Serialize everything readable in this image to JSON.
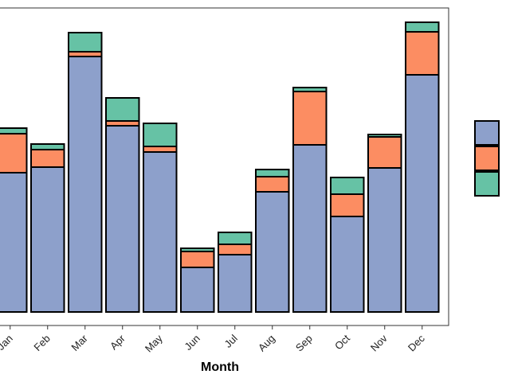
{
  "chart_data": {
    "type": "bar",
    "stacked": true,
    "xlabel": "Month",
    "ylabel": "",
    "categories": [
      "Jan",
      "Feb",
      "Mar",
      "Apr",
      "May",
      "Jun",
      "Jul",
      "Aug",
      "Sep",
      "Oct",
      "Nov",
      "Dec"
    ],
    "ylim": [
      0,
      364
    ],
    "grid": false,
    "legend_position": "right",
    "series": [
      {
        "color": "#8DA0CB",
        "values": [
          175,
          182,
          321,
          234,
          201,
          56,
          72,
          151,
          210,
          120,
          181,
          298
        ]
      },
      {
        "color": "#FC8D62",
        "values": [
          49,
          22,
          6,
          6,
          7,
          20,
          13,
          19,
          67,
          28,
          39,
          54
        ]
      },
      {
        "color": "#66C2A5",
        "values": [
          7,
          7,
          24,
          29,
          29,
          4,
          15,
          9,
          5,
          21,
          3,
          12
        ]
      }
    ]
  }
}
